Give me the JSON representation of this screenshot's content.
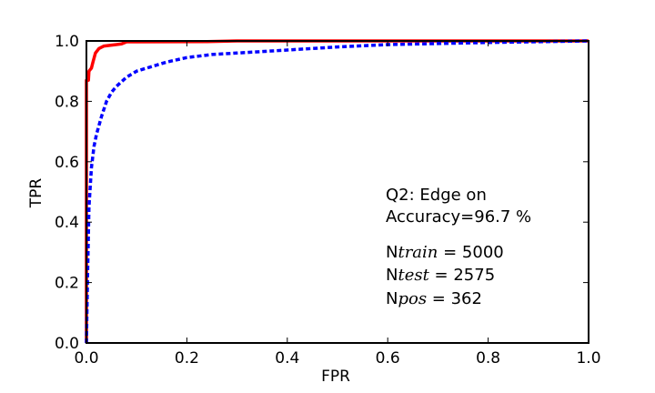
{
  "chart_data": {
    "type": "line",
    "title": "",
    "xlabel": "FPR",
    "ylabel": "TPR",
    "xlim": [
      0.0,
      1.0
    ],
    "ylim": [
      0.0,
      1.0
    ],
    "grid": false,
    "x_ticks": [
      0.0,
      0.2,
      0.4,
      0.6,
      0.8,
      1.0
    ],
    "y_ticks": [
      0.0,
      0.2,
      0.4,
      0.6,
      0.8,
      1.0
    ],
    "x_tick_labels": [
      "0.0",
      "0.2",
      "0.4",
      "0.6",
      "0.8",
      "1.0"
    ],
    "y_tick_labels": [
      "0.0",
      "0.2",
      "0.4",
      "0.6",
      "0.8",
      "1.0"
    ],
    "series": [
      {
        "color": "#ff0000",
        "style": "solid",
        "points": [
          [
            0.0,
            0.0
          ],
          [
            0.0,
            0.87
          ],
          [
            0.004,
            0.87
          ],
          [
            0.005,
            0.9
          ],
          [
            0.01,
            0.91
          ],
          [
            0.013,
            0.93
          ],
          [
            0.018,
            0.96
          ],
          [
            0.025,
            0.975
          ],
          [
            0.035,
            0.983
          ],
          [
            0.05,
            0.986
          ],
          [
            0.07,
            0.99
          ],
          [
            0.08,
            0.997
          ],
          [
            0.1,
            0.997
          ],
          [
            0.24,
            0.998
          ],
          [
            0.3,
            1.0
          ],
          [
            1.0,
            1.0
          ]
        ]
      },
      {
        "color": "#0000ff",
        "style": "dashed",
        "points": [
          [
            0.0,
            0.0
          ],
          [
            0.002,
            0.2
          ],
          [
            0.005,
            0.45
          ],
          [
            0.01,
            0.58
          ],
          [
            0.015,
            0.65
          ],
          [
            0.02,
            0.69
          ],
          [
            0.03,
            0.75
          ],
          [
            0.04,
            0.8
          ],
          [
            0.05,
            0.83
          ],
          [
            0.06,
            0.85
          ],
          [
            0.08,
            0.88
          ],
          [
            0.1,
            0.9
          ],
          [
            0.13,
            0.915
          ],
          [
            0.16,
            0.93
          ],
          [
            0.2,
            0.945
          ],
          [
            0.25,
            0.955
          ],
          [
            0.3,
            0.96
          ],
          [
            0.4,
            0.97
          ],
          [
            0.5,
            0.98
          ],
          [
            0.6,
            0.988
          ],
          [
            0.8,
            0.995
          ],
          [
            1.0,
            1.0
          ]
        ]
      }
    ],
    "annotations": {
      "line1": "Q2: Edge on",
      "line2": "Accuracy=96.7 %",
      "ntrain_prefix": "N",
      "ntrain_sub": "train",
      "ntrain_value": " = 5000",
      "ntest_prefix": "N",
      "ntest_sub": "test",
      "ntest_value": " = 2575",
      "npos_prefix": "N",
      "npos_sub": "pos",
      "npos_value": " = 362"
    }
  }
}
